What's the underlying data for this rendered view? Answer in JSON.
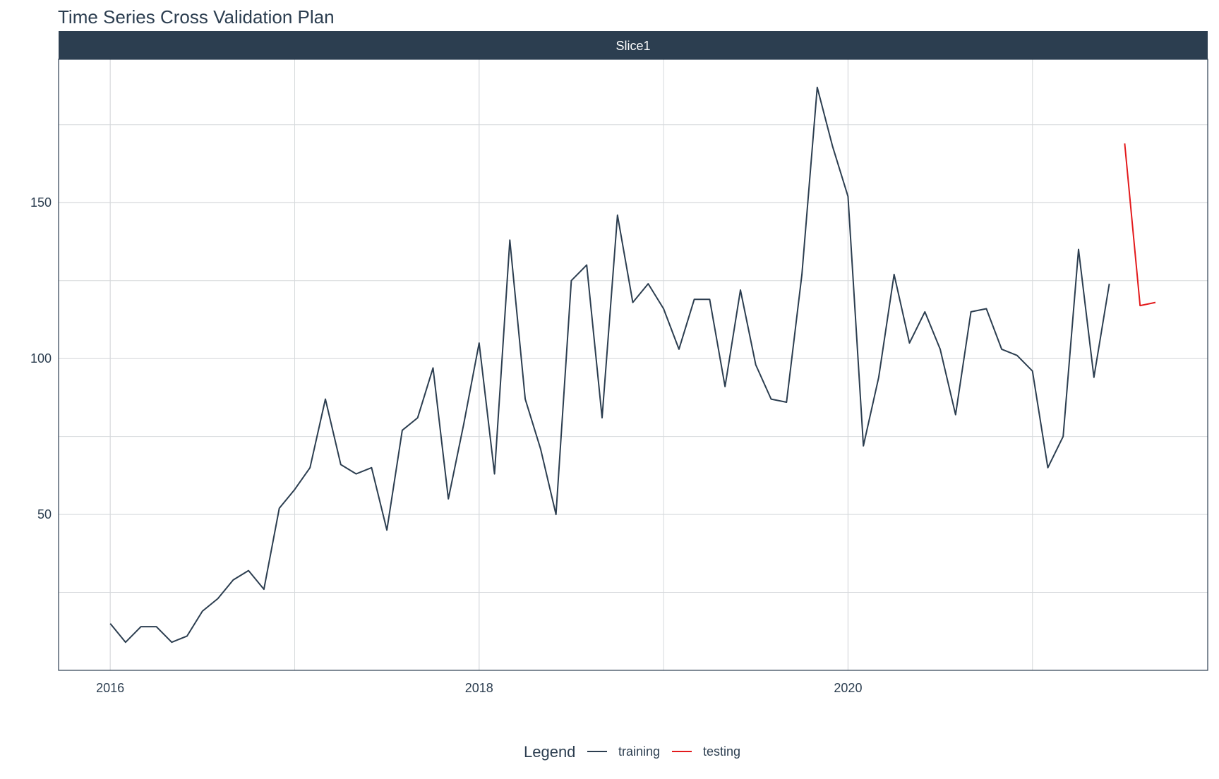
{
  "chart_data": {
    "type": "line",
    "title": "Time Series Cross Validation Plan",
    "facet": "Slice1",
    "xlabel": "",
    "ylabel": "",
    "grid": true,
    "legend_position": "bottom",
    "legend_title": "Legend",
    "xlim": [
      2015.72,
      2021.95
    ],
    "ylim": [
      0,
      196
    ],
    "x_ticks": [
      2016,
      2018,
      2020
    ],
    "x_tick_labels": [
      "2016",
      "2018",
      "2020"
    ],
    "y_ticks": [
      50,
      100,
      150
    ],
    "y_tick_labels": [
      "50",
      "100",
      "150"
    ],
    "colors": {
      "training": "#2c3e50",
      "testing": "#e31a1c",
      "strip": "#2c3e50"
    },
    "series": [
      {
        "name": "training",
        "x_start": 2016.0,
        "x_step": 0.08333,
        "values": [
          15,
          9,
          14,
          14,
          9,
          11,
          19,
          23,
          29,
          32,
          26,
          52,
          58,
          65,
          87,
          66,
          63,
          65,
          45,
          77,
          81,
          97,
          55,
          79,
          105,
          63,
          138,
          87,
          71,
          50,
          125,
          130,
          81,
          146,
          118,
          124,
          116,
          103,
          119,
          119,
          91,
          122,
          98,
          87,
          86,
          127,
          187,
          168,
          152,
          72,
          94,
          127,
          105,
          115,
          103,
          82,
          115,
          116,
          103,
          101,
          96,
          65,
          75,
          135,
          94,
          124
        ]
      },
      {
        "name": "testing",
        "x_start": 2021.5,
        "x_step": 0.08333,
        "values": [
          169,
          117,
          118
        ]
      }
    ]
  }
}
